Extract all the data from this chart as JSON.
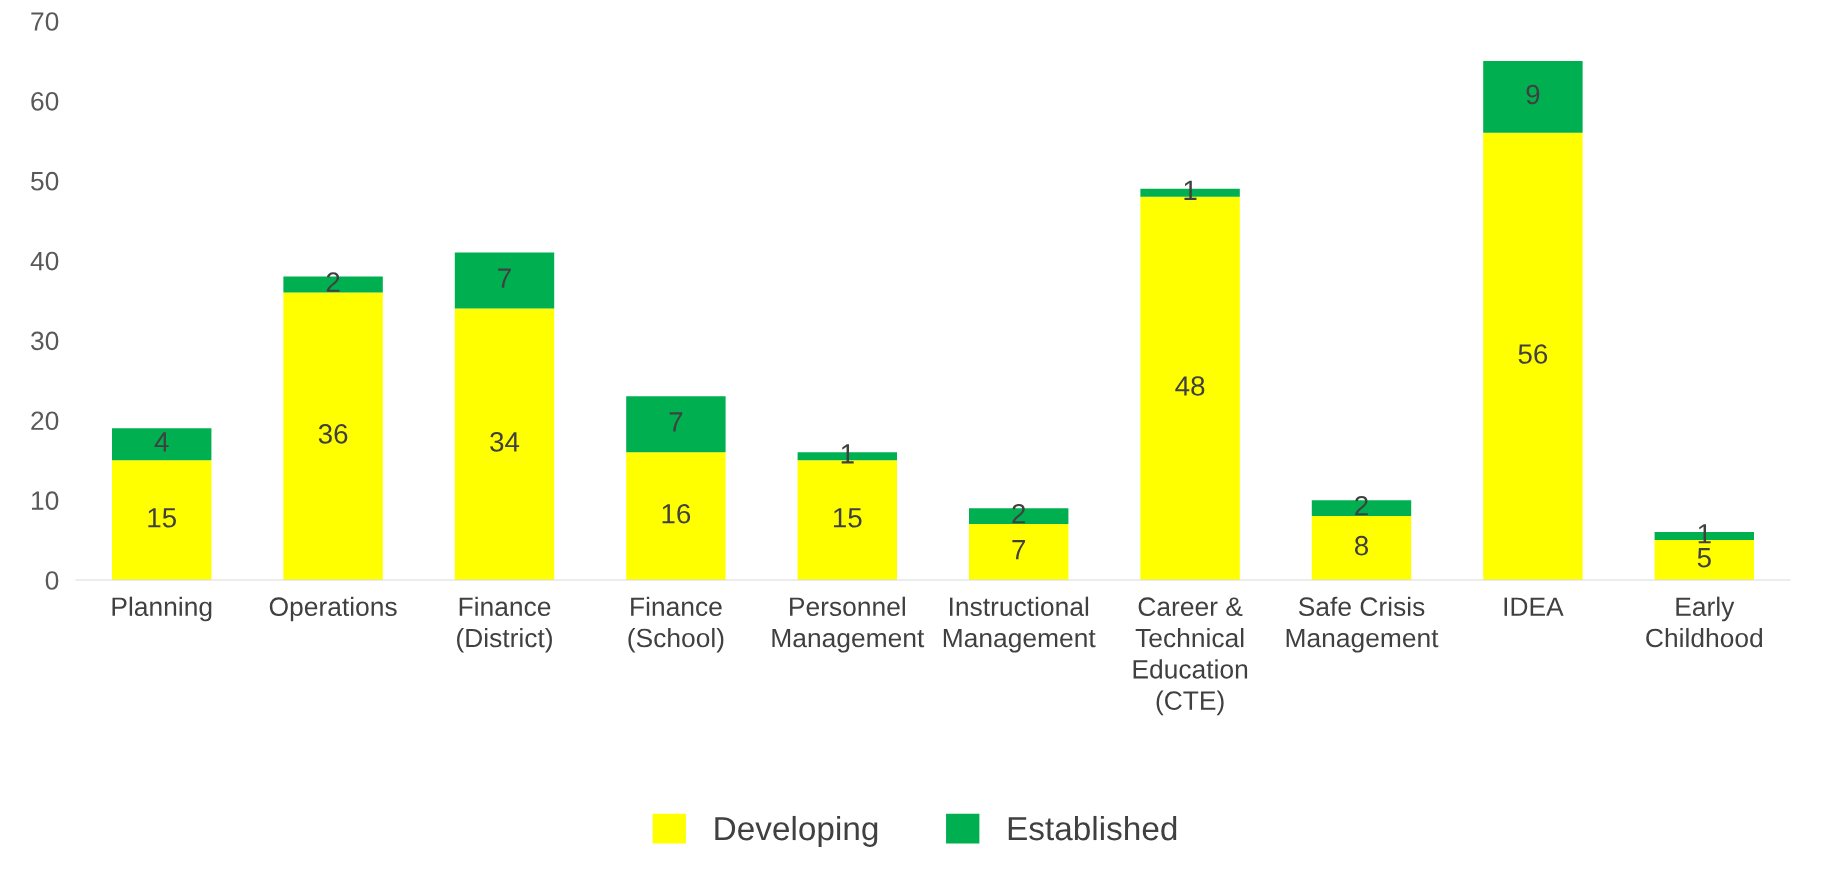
{
  "chart_data": {
    "type": "bar",
    "stacked": true,
    "categories": [
      "Planning",
      "Operations",
      "Finance\n(District)",
      "Finance\n(School)",
      "Personnel\nManagement",
      "Instructional\nManagement",
      "Career &\nTechnical\nEducation\n(CTE)",
      "Safe Crisis\nManagement",
      "IDEA",
      "Early\nChildhood"
    ],
    "series": [
      {
        "name": "Developing",
        "color": "#ffff00",
        "values": [
          15,
          36,
          34,
          16,
          15,
          7,
          48,
          8,
          56,
          5
        ]
      },
      {
        "name": "Established",
        "color": "#00b050",
        "values": [
          4,
          2,
          7,
          7,
          1,
          2,
          1,
          2,
          9,
          1
        ]
      }
    ],
    "ylim": [
      0,
      70
    ],
    "yticks": [
      0,
      10,
      20,
      30,
      40,
      50,
      60,
      70
    ],
    "data_labels": true,
    "grid": false,
    "legend": "bottom"
  }
}
